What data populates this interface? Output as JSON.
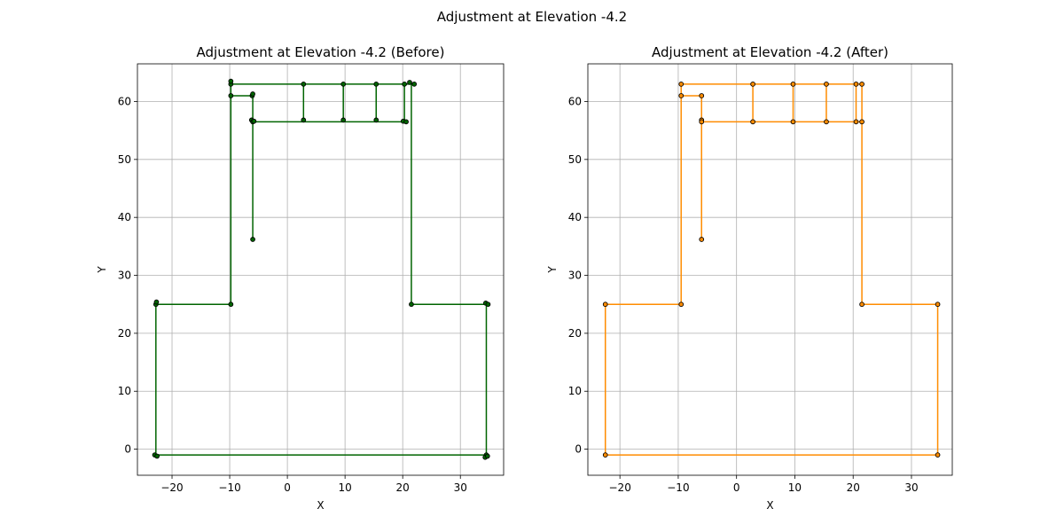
{
  "figure": {
    "suptitle": "Adjustment at Elevation -4.2"
  },
  "chart_data": [
    {
      "type": "line",
      "title": "Adjustment at Elevation -4.2 (Before)",
      "xlabel": "X",
      "ylabel": "Y",
      "xlim": [
        -26,
        37.5
      ],
      "ylim": [
        -4.5,
        66.5
      ],
      "xticks": [
        -20,
        -10,
        0,
        10,
        20,
        30
      ],
      "yticks": [
        0,
        10,
        20,
        30,
        40,
        50,
        60
      ],
      "grid": true,
      "line_color": "#006400",
      "marker_color": "#1a3d1a",
      "segments": [
        [
          [
            -22.8,
            -1.0
          ],
          [
            34.5,
            -1.0
          ]
        ],
        [
          [
            -22.8,
            -1.0
          ],
          [
            -22.8,
            25.0
          ]
        ],
        [
          [
            -22.8,
            25.0
          ],
          [
            -9.8,
            25.0
          ]
        ],
        [
          [
            -9.8,
            25.0
          ],
          [
            -9.8,
            63.0
          ]
        ],
        [
          [
            -9.8,
            63.0
          ],
          [
            22.0,
            63.0
          ]
        ],
        [
          [
            -9.8,
            61.0
          ],
          [
            -6.0,
            61.0
          ]
        ],
        [
          [
            -6.0,
            61.0
          ],
          [
            -6.0,
            56.5
          ]
        ],
        [
          [
            -6.0,
            56.5
          ],
          [
            20.5,
            56.5
          ]
        ],
        [
          [
            -6.0,
            56.5
          ],
          [
            -6.0,
            36.2
          ]
        ],
        [
          [
            2.8,
            63.0
          ],
          [
            2.8,
            56.8
          ]
        ],
        [
          [
            9.7,
            63.0
          ],
          [
            9.7,
            56.8
          ]
        ],
        [
          [
            15.4,
            63.0
          ],
          [
            15.4,
            56.8
          ]
        ],
        [
          [
            20.3,
            63.0
          ],
          [
            20.3,
            56.5
          ]
        ],
        [
          [
            21.5,
            63.0
          ],
          [
            21.5,
            25.0
          ]
        ],
        [
          [
            21.5,
            25.0
          ],
          [
            34.5,
            25.0
          ]
        ],
        [
          [
            34.5,
            25.0
          ],
          [
            34.5,
            -1.0
          ]
        ]
      ],
      "points": [
        [
          -23.0,
          -1.0
        ],
        [
          -22.6,
          -1.2
        ],
        [
          -22.8,
          25.0
        ],
        [
          -22.7,
          25.4
        ],
        [
          -9.8,
          25.0
        ],
        [
          -9.8,
          61.0
        ],
        [
          -9.8,
          63.0
        ],
        [
          -9.8,
          63.5
        ],
        [
          -6.1,
          61.0
        ],
        [
          -6.0,
          61.3
        ],
        [
          -6.2,
          56.8
        ],
        [
          -6.0,
          56.5
        ],
        [
          -5.8,
          56.6
        ],
        [
          -6.0,
          36.2
        ],
        [
          2.8,
          63.0
        ],
        [
          2.8,
          56.8
        ],
        [
          9.7,
          63.0
        ],
        [
          9.7,
          56.8
        ],
        [
          15.4,
          63.0
        ],
        [
          15.4,
          56.8
        ],
        [
          20.3,
          63.0
        ],
        [
          20.1,
          56.6
        ],
        [
          20.6,
          56.5
        ],
        [
          21.2,
          63.3
        ],
        [
          22.0,
          63.0
        ],
        [
          21.5,
          25.0
        ],
        [
          34.4,
          25.2
        ],
        [
          34.8,
          25.0
        ],
        [
          34.5,
          -1.0
        ],
        [
          34.3,
          -1.4
        ],
        [
          34.7,
          -1.2
        ]
      ]
    },
    {
      "type": "line",
      "title": "Adjustment at Elevation -4.2 (After)",
      "xlabel": "X",
      "ylabel": "Y",
      "xlim": [
        -25.5,
        37
      ],
      "ylim": [
        -4.5,
        66.5
      ],
      "xticks": [
        -20,
        -10,
        0,
        10,
        20,
        30
      ],
      "yticks": [
        0,
        10,
        20,
        30,
        40,
        50,
        60
      ],
      "grid": true,
      "line_color": "#ff8c00",
      "marker_color": "#5a2a00",
      "segments": [
        [
          [
            -22.5,
            -1.0
          ],
          [
            34.5,
            -1.0
          ]
        ],
        [
          [
            -22.5,
            -1.0
          ],
          [
            -22.5,
            25.0
          ]
        ],
        [
          [
            -22.5,
            25.0
          ],
          [
            -9.5,
            25.0
          ]
        ],
        [
          [
            -9.5,
            25.0
          ],
          [
            -9.5,
            63.0
          ]
        ],
        [
          [
            -9.5,
            63.0
          ],
          [
            21.5,
            63.0
          ]
        ],
        [
          [
            -9.5,
            61.0
          ],
          [
            -6.0,
            61.0
          ]
        ],
        [
          [
            -6.0,
            61.0
          ],
          [
            -6.0,
            56.5
          ]
        ],
        [
          [
            -6.0,
            56.5
          ],
          [
            21.5,
            56.5
          ]
        ],
        [
          [
            -6.0,
            56.5
          ],
          [
            -6.0,
            36.2
          ]
        ],
        [
          [
            2.8,
            63.0
          ],
          [
            2.8,
            56.5
          ]
        ],
        [
          [
            9.7,
            63.0
          ],
          [
            9.7,
            56.5
          ]
        ],
        [
          [
            15.4,
            63.0
          ],
          [
            15.4,
            56.5
          ]
        ],
        [
          [
            20.5,
            63.0
          ],
          [
            20.5,
            56.5
          ]
        ],
        [
          [
            21.5,
            63.0
          ],
          [
            21.5,
            25.0
          ]
        ],
        [
          [
            21.5,
            25.0
          ],
          [
            34.5,
            25.0
          ]
        ],
        [
          [
            34.5,
            25.0
          ],
          [
            34.5,
            -1.0
          ]
        ]
      ],
      "points": [
        [
          -22.5,
          -1.0
        ],
        [
          -22.5,
          25.0
        ],
        [
          -9.5,
          25.0
        ],
        [
          -9.5,
          61.0
        ],
        [
          -9.5,
          63.0
        ],
        [
          -6.0,
          61.0
        ],
        [
          -6.0,
          56.8
        ],
        [
          -6.0,
          56.5
        ],
        [
          -6.0,
          36.2
        ],
        [
          2.8,
          63.0
        ],
        [
          2.8,
          56.5
        ],
        [
          9.7,
          63.0
        ],
        [
          9.7,
          56.5
        ],
        [
          15.4,
          63.0
        ],
        [
          15.4,
          56.5
        ],
        [
          20.5,
          63.0
        ],
        [
          20.5,
          56.5
        ],
        [
          21.5,
          63.0
        ],
        [
          21.5,
          56.5
        ],
        [
          21.5,
          25.0
        ],
        [
          34.5,
          25.0
        ],
        [
          34.5,
          -1.0
        ]
      ]
    }
  ]
}
